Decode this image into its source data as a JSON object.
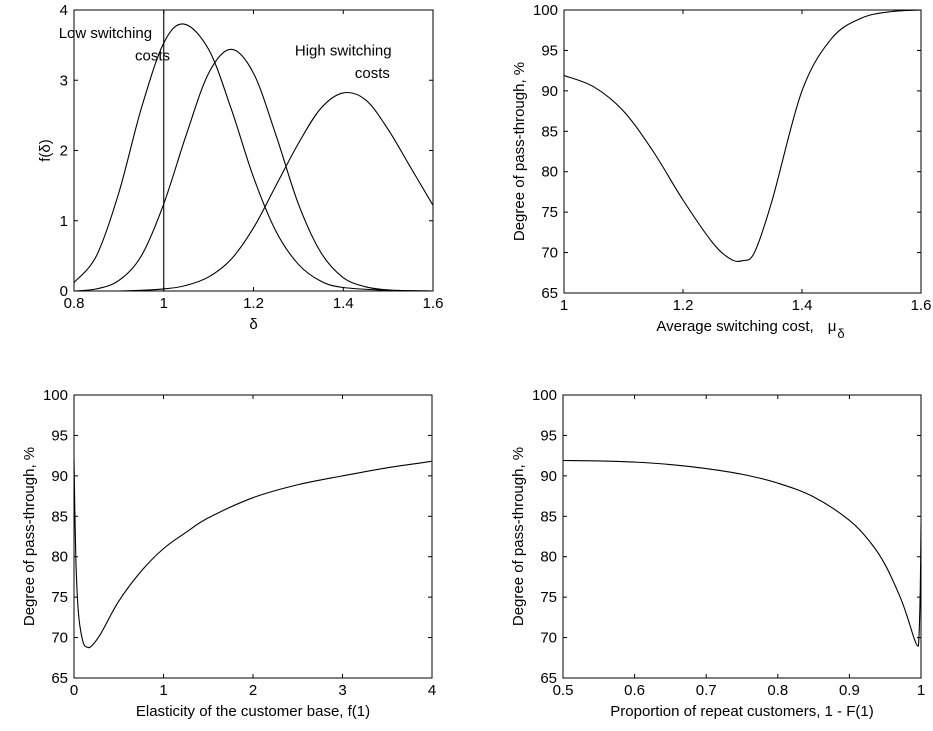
{
  "chart_data": [
    {
      "id": "tl",
      "type": "line",
      "title": "",
      "xlabel": "δ",
      "ylabel": "f(δ)",
      "xlim": [
        0.8,
        1.6
      ],
      "ylim": [
        0,
        4
      ],
      "xticks": [
        0.8,
        1,
        1.2,
        1.4,
        1.6
      ],
      "xtick_labels": [
        "0.8",
        "1",
        "1.2",
        "1.4",
        "1.6"
      ],
      "yticks": [
        0,
        1,
        2,
        3,
        4
      ],
      "ytick_labels": [
        "0",
        "1",
        "2",
        "3",
        "4"
      ],
      "grid": false,
      "legend": "none",
      "annotations": [
        {
          "text": "Low switching",
          "x": 0.87,
          "y": 3.6
        },
        {
          "text": "costs",
          "x": 0.975,
          "y": 3.28
        },
        {
          "text": "High switching",
          "x": 1.4,
          "y": 3.35
        },
        {
          "text": "costs",
          "x": 1.465,
          "y": 3.03
        }
      ],
      "vline_x": 1.0,
      "series": [
        {
          "x": [
            0.8,
            0.85,
            0.9,
            0.95,
            1.0,
            1.045,
            1.1,
            1.15,
            1.2,
            1.25,
            1.3,
            1.35,
            1.4,
            1.5,
            1.6
          ],
          "y": [
            0.12,
            0.5,
            1.4,
            2.6,
            3.53,
            3.8,
            3.44,
            2.6,
            1.62,
            0.85,
            0.38,
            0.14,
            0.05,
            0.01,
            0.0
          ]
        },
        {
          "x": [
            0.8,
            0.85,
            0.9,
            0.95,
            1.0,
            1.05,
            1.1,
            1.15,
            1.2,
            1.25,
            1.3,
            1.35,
            1.4,
            1.45,
            1.5,
            1.55,
            1.6
          ],
          "y": [
            0.0,
            0.03,
            0.15,
            0.5,
            1.24,
            2.22,
            3.1,
            3.44,
            3.1,
            2.22,
            1.24,
            0.55,
            0.19,
            0.06,
            0.015,
            0.004,
            0.0
          ]
        },
        {
          "x": [
            0.8,
            0.9,
            1.0,
            1.05,
            1.1,
            1.15,
            1.2,
            1.25,
            1.3,
            1.35,
            1.4,
            1.45,
            1.5,
            1.55,
            1.6
          ],
          "y": [
            0.0,
            0.0,
            0.03,
            0.08,
            0.2,
            0.45,
            0.9,
            1.5,
            2.1,
            2.6,
            2.82,
            2.72,
            2.3,
            1.76,
            1.22
          ]
        }
      ]
    },
    {
      "id": "tr",
      "type": "line",
      "title": "",
      "xlabel": "Average switching cost,",
      "xlabel_symbol": "μ",
      "xlabel_subscript": "δ",
      "ylabel": "Degree of pass-through, %",
      "xlim": [
        1,
        1.6
      ],
      "ylim": [
        65,
        100
      ],
      "xticks": [
        1,
        1.2,
        1.4,
        1.6
      ],
      "xtick_labels": [
        "1",
        "1.2",
        "1.4",
        "1.6"
      ],
      "yticks": [
        65,
        70,
        75,
        80,
        85,
        90,
        95,
        100
      ],
      "ytick_labels": [
        "65",
        "70",
        "75",
        "80",
        "85",
        "90",
        "95",
        "100"
      ],
      "grid": false,
      "legend": "none",
      "series": [
        {
          "x": [
            1.0,
            1.05,
            1.1,
            1.15,
            1.2,
            1.25,
            1.28,
            1.3,
            1.32,
            1.35,
            1.4,
            1.45,
            1.5,
            1.55,
            1.6
          ],
          "y": [
            91.9,
            90.5,
            87.5,
            82.5,
            76.5,
            71.2,
            69.2,
            69.0,
            70.0,
            76.5,
            90.0,
            96.5,
            99.0,
            99.8,
            100.0
          ]
        }
      ]
    },
    {
      "id": "bl",
      "type": "line",
      "title": "",
      "xlabel": "Elasticity of the customer base, f(1)",
      "ylabel": "Degree of pass-through, %",
      "xlim": [
        0,
        4
      ],
      "ylim": [
        65,
        100
      ],
      "xticks": [
        0,
        1,
        2,
        3,
        4
      ],
      "xtick_labels": [
        "0",
        "1",
        "2",
        "3",
        "4"
      ],
      "yticks": [
        65,
        70,
        75,
        80,
        85,
        90,
        95,
        100
      ],
      "ytick_labels": [
        "65",
        "70",
        "75",
        "80",
        "85",
        "90",
        "95",
        "100"
      ],
      "grid": false,
      "legend": "none",
      "series": [
        {
          "x": [
            0.0,
            0.02,
            0.05,
            0.1,
            0.15,
            0.2,
            0.3,
            0.5,
            0.75,
            1.0,
            1.25,
            1.5,
            2.0,
            2.5,
            3.0,
            3.5,
            4.0
          ],
          "y": [
            92.0,
            80.0,
            73.0,
            69.5,
            68.8,
            69.0,
            70.5,
            74.5,
            78.2,
            81.0,
            83.0,
            84.8,
            87.3,
            88.9,
            90.0,
            91.0,
            91.8
          ]
        }
      ]
    },
    {
      "id": "br",
      "type": "line",
      "title": "",
      "xlabel": "Proportion of repeat customers, 1 - F(1)",
      "ylabel": "Degree of pass-through, %",
      "xlim": [
        0.5,
        1
      ],
      "ylim": [
        65,
        100
      ],
      "xticks": [
        0.5,
        0.6,
        0.7,
        0.8,
        0.9,
        1
      ],
      "xtick_labels": [
        "0.5",
        "0.6",
        "0.7",
        "0.8",
        "0.9",
        "1"
      ],
      "yticks": [
        65,
        70,
        75,
        80,
        85,
        90,
        95,
        100
      ],
      "ytick_labels": [
        "65",
        "70",
        "75",
        "80",
        "85",
        "90",
        "95",
        "100"
      ],
      "grid": false,
      "legend": "none",
      "series": [
        {
          "x": [
            0.5,
            0.55,
            0.6,
            0.65,
            0.7,
            0.75,
            0.8,
            0.85,
            0.9,
            0.93,
            0.95,
            0.97,
            0.98,
            0.99,
            0.995,
            0.997,
            0.999,
            1.0
          ],
          "y": [
            91.9,
            91.85,
            91.7,
            91.4,
            90.9,
            90.2,
            89.1,
            87.4,
            84.5,
            81.7,
            79.0,
            75.2,
            72.8,
            70.0,
            69.0,
            69.8,
            76.0,
            84.0
          ]
        }
      ]
    }
  ]
}
